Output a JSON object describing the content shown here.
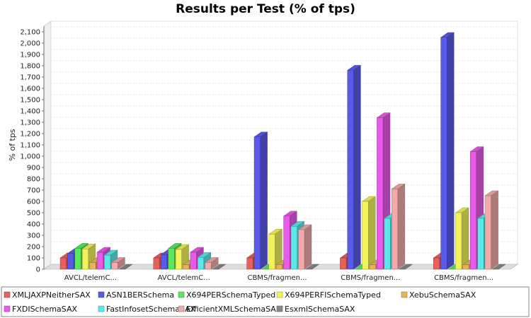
{
  "chart_data": {
    "type": "bar",
    "title": "Results per Test (% of tps)",
    "xlabel": "",
    "ylabel": "% of tps",
    "ylim": [
      0,
      2150
    ],
    "yticks": [
      0,
      100,
      200,
      300,
      400,
      500,
      600,
      700,
      800,
      900,
      1000,
      1100,
      1200,
      1300,
      1400,
      1500,
      1600,
      1700,
      1800,
      1900,
      2000,
      2100
    ],
    "ytick_labels": [
      "0",
      "100",
      "200",
      "300",
      "400",
      "500",
      "600",
      "700",
      "800",
      "900",
      "1,000",
      "1,100",
      "1,200",
      "1,300",
      "1,400",
      "1,500",
      "1,600",
      "1,700",
      "1,800",
      "1,900",
      "2,000",
      "2,100"
    ],
    "grid": true,
    "legend_position": "bottom",
    "categories": [
      "AVCL/telemC...",
      "AVCL/telemC...",
      "CBMS/fragmen...",
      "CBMS/fragmen...",
      "CBMS/fragmen..."
    ],
    "series": [
      {
        "name": "XMLJAXPNeitherSAX",
        "color": "#e8605a",
        "values": [
          100,
          100,
          100,
          100,
          100
        ]
      },
      {
        "name": "ASN1BERSchema",
        "color": "#5a5ae8",
        "values": [
          140,
          130,
          1170,
          1760,
          2050
        ]
      },
      {
        "name": "X694PERSchemaTyped",
        "color": "#5ae85a",
        "values": [
          185,
          185,
          0,
          0,
          0
        ]
      },
      {
        "name": "X694PERFISchemaTyped",
        "color": "#f2f25a",
        "values": [
          180,
          175,
          310,
          600,
          500
        ]
      },
      {
        "name": "XebuSchemaSAX",
        "color": "#e8b45a",
        "values": [
          60,
          40,
          40,
          40,
          40
        ]
      },
      {
        "name": "FXDISchemaSAX",
        "color": "#e85ae8",
        "values": [
          150,
          150,
          470,
          1340,
          1040
        ]
      },
      {
        "name": "FastInfosetSchemaSAX",
        "color": "#5ae8e8",
        "values": [
          125,
          105,
          380,
          450,
          450
        ]
      },
      {
        "name": "EfficientXMLSchemaSAX",
        "color": "#f2aaaa",
        "values": [
          60,
          60,
          350,
          710,
          650
        ]
      },
      {
        "name": "EsxmlSchemaSAX",
        "color": "#888888",
        "values": [
          0,
          0,
          0,
          0,
          0
        ]
      }
    ]
  }
}
